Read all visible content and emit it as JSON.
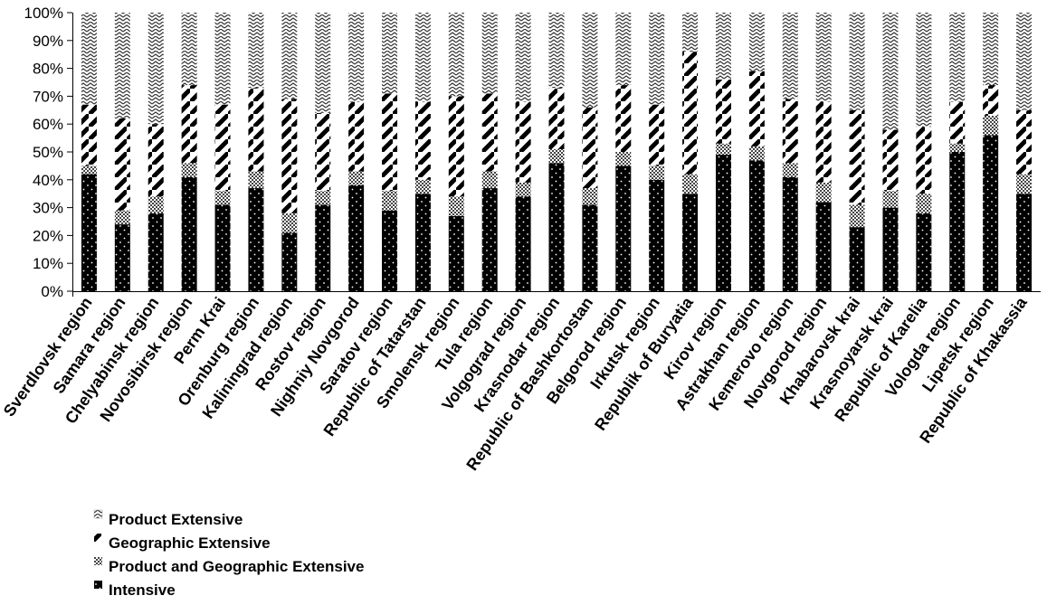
{
  "chart_data": {
    "type": "bar",
    "stacked": true,
    "percent": true,
    "categories": [
      "Sverdlovsk region",
      "Samara region",
      "Chelyabinsk region",
      "Novosibirsk region",
      "Perm Krai",
      "Orenburg region",
      "Kaliningrad region",
      "Rostov region",
      "Nighniy Novgorod",
      "Saratov region",
      "Republic of Tatarstan",
      "Smolensk region",
      "Tula region",
      "Volgograd region",
      "Krasnodar region",
      "Republic of Bashkortostan",
      "Belgorod region",
      "Irkutsk region",
      "Republik of Buryatia",
      "Kirov region",
      "Astrakhan region",
      "Kemerovo region",
      "Novgorod region",
      "Khabarovsk krai",
      "Krasnoyarsk krai",
      "Republic of Karelia",
      "Vologda region",
      "Lipetsk region",
      "Republic of Khakassia"
    ],
    "series": [
      {
        "name": "Intensive",
        "values": [
          42,
          24,
          28,
          41,
          31,
          37,
          21,
          31,
          38,
          29,
          35,
          27,
          37,
          34,
          46,
          31,
          45,
          40,
          35,
          49,
          47,
          41,
          32,
          23,
          30,
          28,
          50,
          56,
          35
        ],
        "color": "#000000",
        "pattern": "dots"
      },
      {
        "name": "Product and Geographic Extensive",
        "values": [
          3,
          5,
          6,
          5,
          5,
          6,
          7,
          5,
          5,
          7,
          5,
          7,
          6,
          5,
          5,
          6,
          5,
          5,
          7,
          4,
          5,
          5,
          7,
          8,
          6,
          7,
          3,
          7,
          7
        ],
        "color": "#888888",
        "pattern": "grid"
      },
      {
        "name": "Geographic Extensive",
        "values": [
          22,
          33,
          26,
          28,
          31,
          30,
          41,
          28,
          25,
          35,
          28,
          36,
          28,
          29,
          22,
          29,
          24,
          22,
          44,
          23,
          27,
          23,
          29,
          34,
          22,
          24,
          15,
          11,
          23
        ],
        "color": "#000000",
        "pattern": "diagonal"
      },
      {
        "name": "Product Extensive",
        "values": [
          33,
          38,
          40,
          26,
          33,
          27,
          31,
          36,
          32,
          29,
          32,
          30,
          29,
          32,
          27,
          34,
          26,
          33,
          14,
          24,
          21,
          31,
          32,
          35,
          42,
          41,
          32,
          26,
          35
        ],
        "color": "#cccccc",
        "pattern": "chevrons"
      }
    ],
    "ylim": [
      0,
      100
    ],
    "yticks": [
      "0%",
      "10%",
      "20%",
      "30%",
      "40%",
      "50%",
      "60%",
      "70%",
      "80%",
      "90%",
      "100%"
    ],
    "grid": false,
    "legend_position": "bottom-left",
    "legend_order": [
      "Product Extensive",
      "Geographic Extensive",
      "Product and Geographic Extensive",
      "Intensive"
    ],
    "title": "",
    "xlabel": "",
    "ylabel": ""
  }
}
